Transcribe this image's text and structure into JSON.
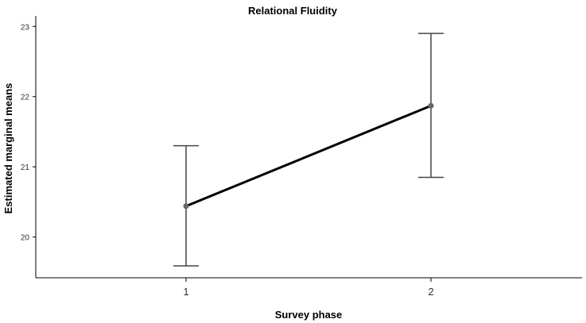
{
  "chart_data": {
    "type": "line",
    "title": "Relational Fluidity",
    "xlabel": "Survey phase",
    "ylabel": "Estimated marginal means",
    "categories": [
      "1",
      "2"
    ],
    "series": [
      {
        "name": "Estimated marginal means",
        "values": [
          20.44,
          21.87
        ],
        "error_low": [
          19.59,
          20.85
        ],
        "error_high": [
          21.3,
          22.9
        ]
      }
    ],
    "yticks": [
      "20",
      "21",
      "22",
      "23"
    ],
    "ylim": [
      19.42,
      23.15
    ],
    "grid": false,
    "colors": {
      "line": "#000000",
      "point": "#666666",
      "errorbar": "#444444"
    }
  }
}
